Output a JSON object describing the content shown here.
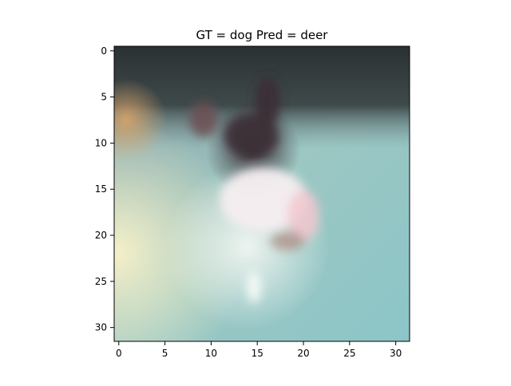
{
  "figure": {
    "title": "GT = dog Pred = deer"
  },
  "chart_data": {
    "type": "heatmap",
    "title": "GT = dog Pred = deer",
    "xlabel": "",
    "ylabel": "",
    "xlim": [
      -0.5,
      31.5
    ],
    "ylim": [
      31.5,
      -0.5
    ],
    "x_ticks": [
      0,
      5,
      10,
      15,
      20,
      25,
      30
    ],
    "y_ticks": [
      0,
      5,
      10,
      15,
      20,
      25,
      30
    ],
    "x_tick_labels": [
      "0",
      "5",
      "10",
      "15",
      "20",
      "25",
      "30"
    ],
    "y_tick_labels": [
      "0",
      "5",
      "10",
      "15",
      "20",
      "25",
      "30"
    ],
    "image_resolution": [
      32,
      32
    ],
    "grid": false
  }
}
